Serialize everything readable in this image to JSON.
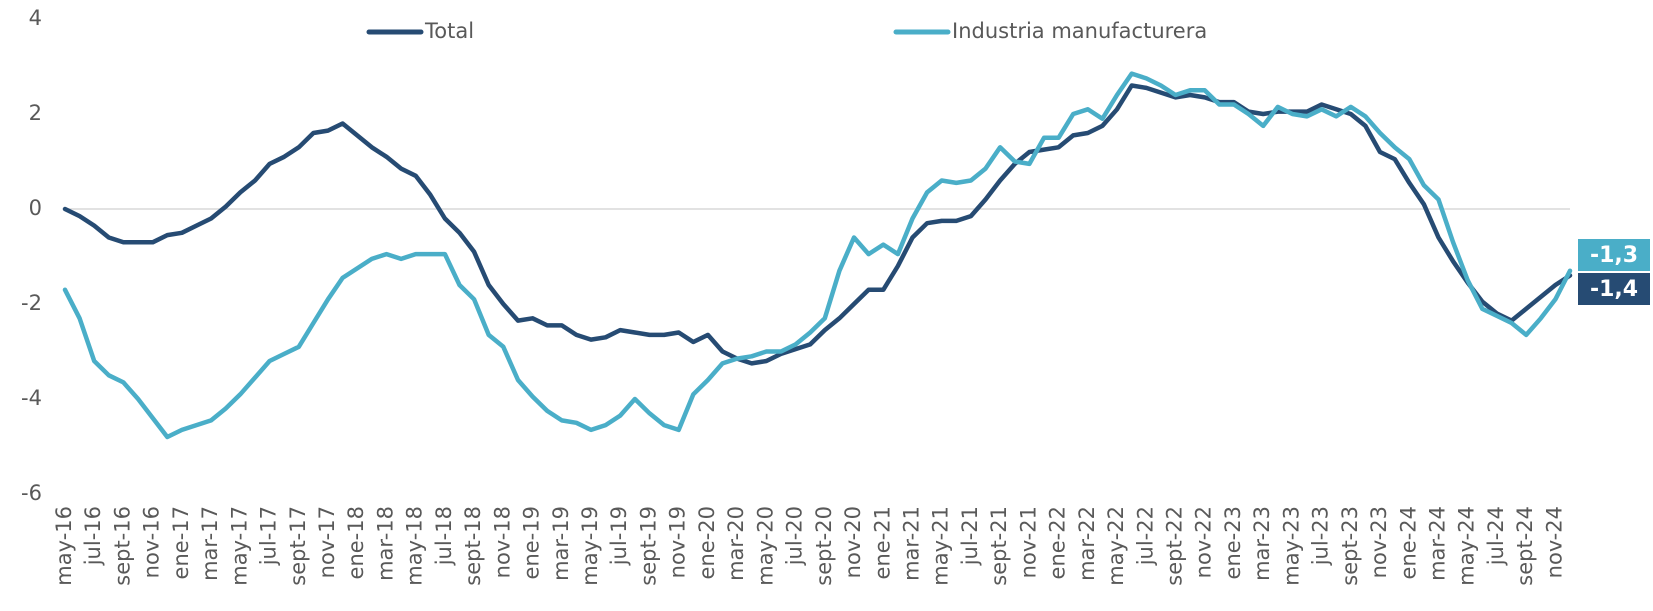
{
  "chart_data": {
    "type": "line",
    "categories": [
      "may-16",
      null,
      "jul-16",
      null,
      "sept-16",
      null,
      "nov-16",
      null,
      "ene-17",
      null,
      "mar-17",
      null,
      "may-17",
      null,
      "jul-17",
      null,
      "sept-17",
      null,
      "nov-17",
      null,
      "ene-18",
      null,
      "mar-18",
      null,
      "may-18",
      null,
      "jul-18",
      null,
      "sept-18",
      null,
      "nov-18",
      null,
      "ene-19",
      null,
      "mar-19",
      null,
      "may-19",
      null,
      "jul-19",
      null,
      "sept-19",
      null,
      "nov-19",
      null,
      "ene-20",
      null,
      "mar-20",
      null,
      "may-20",
      null,
      "jul-20",
      null,
      "sept-20",
      null,
      "nov-20",
      null,
      "ene-21",
      null,
      "mar-21",
      null,
      "may-21",
      null,
      "jul-21",
      null,
      "sept-21",
      null,
      "nov-21",
      null,
      "ene-22",
      null,
      "mar-22",
      null,
      "may-22",
      null,
      "jul-22",
      null,
      "sept-22",
      null,
      "nov-22",
      null,
      "ene-23",
      null,
      "mar-23",
      null,
      "may-23",
      null,
      "jul-23",
      null,
      "sept-23",
      null,
      "nov-23",
      null,
      "ene-24",
      null,
      "mar-24",
      null,
      "may-24",
      null,
      "jul-24",
      null,
      "sept-24",
      null,
      "nov-24",
      null
    ],
    "series": [
      {
        "name": "Total",
        "color": "#264b73",
        "values": [
          0.0,
          -0.15,
          -0.35,
          -0.6,
          -0.7,
          -0.7,
          -0.7,
          -0.55,
          -0.5,
          -0.35,
          -0.2,
          0.05,
          0.35,
          0.6,
          0.95,
          1.1,
          1.3,
          1.6,
          1.65,
          1.8,
          1.55,
          1.3,
          1.1,
          0.85,
          0.7,
          0.3,
          -0.2,
          -0.5,
          -0.9,
          -1.6,
          -2.0,
          -2.35,
          -2.3,
          -2.45,
          -2.45,
          -2.65,
          -2.75,
          -2.7,
          -2.55,
          -2.6,
          -2.65,
          -2.65,
          -2.6,
          -2.8,
          -2.65,
          -3.0,
          -3.15,
          -3.25,
          -3.2,
          -3.05,
          -2.95,
          -2.85,
          -2.55,
          -2.3,
          -2.0,
          -1.7,
          -1.7,
          -1.2,
          -0.6,
          -0.3,
          -0.25,
          -0.25,
          -0.15,
          0.2,
          0.6,
          0.95,
          1.2,
          1.25,
          1.3,
          1.55,
          1.6,
          1.75,
          2.1,
          2.6,
          2.55,
          2.45,
          2.35,
          2.4,
          2.35,
          2.25,
          2.25,
          2.05,
          2.0,
          2.05,
          2.05,
          2.05,
          2.2,
          2.1,
          2.0,
          1.75,
          1.2,
          1.05,
          0.55,
          0.1,
          -0.6,
          -1.1,
          -1.55,
          -1.95,
          -2.2,
          -2.35,
          -2.1,
          -1.85,
          -1.6,
          -1.4
        ],
        "value_labels": [
          null,
          null,
          null,
          null,
          null,
          null,
          null,
          null,
          null,
          null,
          null,
          null,
          null,
          null,
          null,
          null,
          null,
          null,
          null,
          null,
          null,
          null,
          null,
          null,
          null,
          null,
          null,
          null,
          null,
          null,
          null,
          null,
          null,
          null,
          null,
          null,
          null,
          null,
          null,
          null,
          null,
          null,
          null,
          null,
          null,
          null,
          null,
          null,
          null,
          null,
          null,
          null,
          null,
          null,
          null,
          null,
          null,
          null,
          null,
          null,
          null,
          null,
          null,
          null,
          null,
          null,
          null,
          null,
          null,
          null,
          null,
          null,
          null,
          null,
          null,
          null,
          null,
          null,
          null,
          null,
          null,
          null,
          null,
          null,
          null,
          null,
          null,
          null,
          null,
          null,
          null,
          null,
          null,
          null,
          null,
          null,
          null,
          null,
          null,
          null,
          null,
          null,
          null,
          "-1,4"
        ]
      },
      {
        "name": "Industria manufacturera",
        "color": "#4aaec8",
        "values": [
          -1.7,
          -2.3,
          -3.2,
          -3.5,
          -3.65,
          -4.0,
          -4.4,
          -4.8,
          -4.65,
          -4.55,
          -4.45,
          -4.2,
          -3.9,
          -3.55,
          -3.2,
          -3.05,
          -2.9,
          -2.4,
          -1.9,
          -1.45,
          -1.25,
          -1.05,
          -0.95,
          -1.05,
          -0.95,
          -0.95,
          -0.95,
          -1.6,
          -1.9,
          -2.65,
          -2.9,
          -3.6,
          -3.95,
          -4.25,
          -4.45,
          -4.5,
          -4.65,
          -4.55,
          -4.35,
          -4.0,
          -4.3,
          -4.55,
          -4.65,
          -3.9,
          -3.6,
          -3.25,
          -3.15,
          -3.1,
          -3.0,
          -3.0,
          -2.85,
          -2.6,
          -2.3,
          -1.3,
          -0.6,
          -0.95,
          -0.75,
          -0.95,
          -0.2,
          0.35,
          0.6,
          0.55,
          0.6,
          0.85,
          1.3,
          1.0,
          0.95,
          1.5,
          1.5,
          2.0,
          2.1,
          1.9,
          2.4,
          2.85,
          2.75,
          2.6,
          2.4,
          2.5,
          2.5,
          2.2,
          2.2,
          2.0,
          1.75,
          2.15,
          2.0,
          1.95,
          2.1,
          1.95,
          2.15,
          1.95,
          1.6,
          1.3,
          1.05,
          0.5,
          0.2,
          -0.7,
          -1.5,
          -2.1,
          -2.25,
          -2.4,
          -2.65,
          -2.3,
          -1.9,
          -1.3
        ],
        "value_labels": [
          null,
          null,
          null,
          null,
          null,
          null,
          null,
          null,
          null,
          null,
          null,
          null,
          null,
          null,
          null,
          null,
          null,
          null,
          null,
          null,
          null,
          null,
          null,
          null,
          null,
          null,
          null,
          null,
          null,
          null,
          null,
          null,
          null,
          null,
          null,
          null,
          null,
          null,
          null,
          null,
          null,
          null,
          null,
          null,
          null,
          null,
          null,
          null,
          null,
          null,
          null,
          null,
          null,
          null,
          null,
          null,
          null,
          null,
          null,
          null,
          null,
          null,
          null,
          null,
          null,
          null,
          null,
          null,
          null,
          null,
          null,
          null,
          null,
          null,
          null,
          null,
          null,
          null,
          null,
          null,
          null,
          null,
          null,
          null,
          null,
          null,
          null,
          null,
          null,
          null,
          null,
          null,
          null,
          null,
          null,
          null,
          null,
          null,
          null,
          null,
          null,
          null,
          null,
          "-1,3"
        ]
      }
    ],
    "ylim": [
      -6,
      4
    ],
    "yticks": [
      4,
      2,
      0,
      -2,
      -4,
      -6
    ],
    "legend": "top",
    "grid": false
  }
}
